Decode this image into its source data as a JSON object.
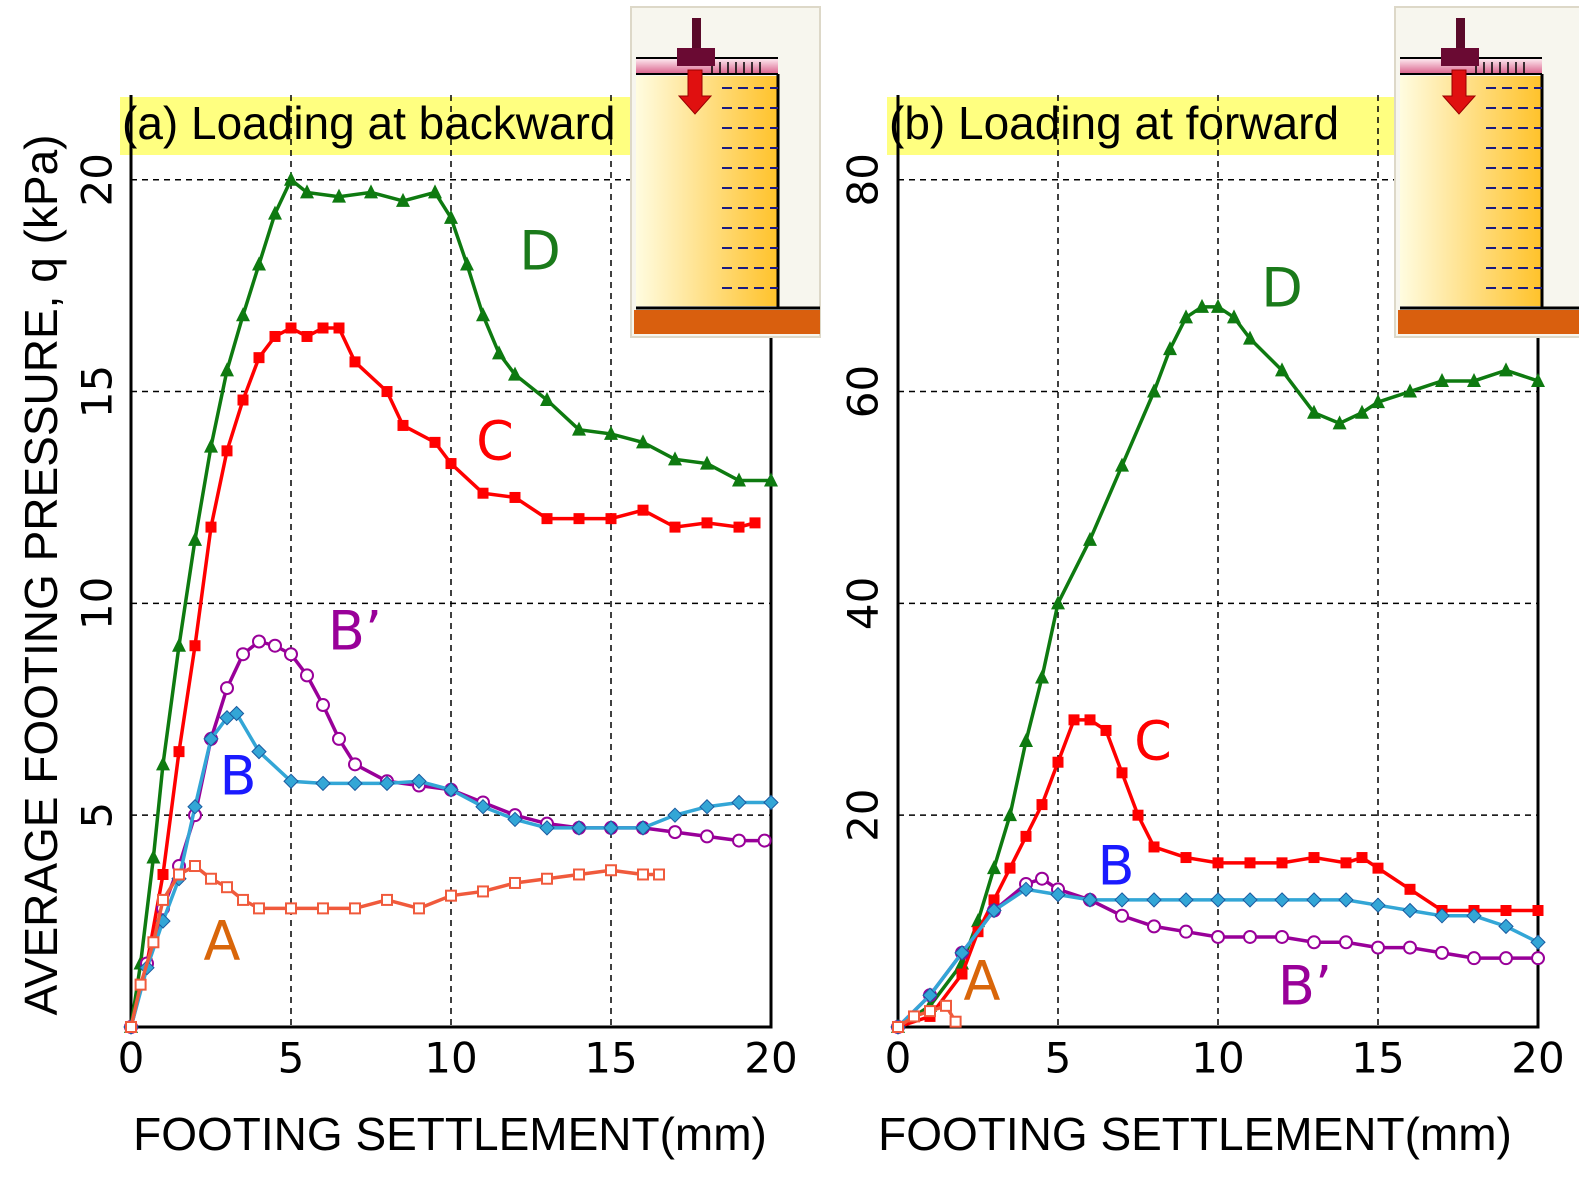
{
  "chart_data": [
    {
      "type": "line",
      "title": "(a) Loading at backward",
      "x_label": "FOOTING SETTLEMENT(mm)",
      "y_label": "AVERAGE FOOTING PRESSURE, q (kPa)",
      "xlim": [
        0,
        20
      ],
      "ylim": [
        0,
        22
      ],
      "xticks": [
        0,
        5,
        10,
        15,
        20
      ],
      "yticks": [
        5,
        10,
        15,
        20
      ],
      "grid": true,
      "series": [
        {
          "name": "D",
          "color": "#0e7a10",
          "label_color": "#1a7a1a",
          "marker": "triangle",
          "x": [
            0,
            0.3,
            0.7,
            1,
            1.5,
            2,
            2.5,
            3,
            3.5,
            4,
            4.5,
            5,
            5.5,
            6.5,
            7.5,
            8.5,
            9.5,
            10,
            10.5,
            11,
            11.5,
            12,
            13,
            14,
            15,
            16,
            17,
            18,
            19,
            20
          ],
          "values": [
            0,
            1.5,
            4,
            6.2,
            9,
            11.5,
            13.7,
            15.5,
            16.8,
            18,
            19.2,
            20,
            19.7,
            19.6,
            19.7,
            19.5,
            19.7,
            19.1,
            18,
            16.8,
            15.9,
            15.4,
            14.8,
            14.1,
            14,
            13.8,
            13.4,
            13.3,
            12.9,
            12.9
          ]
        },
        {
          "name": "C",
          "color": "#ff0000",
          "label_color": "#ff0000",
          "marker": "square",
          "x": [
            0,
            0.5,
            1,
            1.5,
            2,
            2.5,
            3,
            3.5,
            4,
            4.5,
            5,
            5.5,
            6,
            6.5,
            7,
            8,
            8.5,
            9.5,
            10,
            11,
            12,
            13,
            14,
            15,
            16,
            17,
            18,
            19,
            19.5
          ],
          "values": [
            0,
            1.5,
            3.6,
            6.5,
            9,
            11.8,
            13.6,
            14.8,
            15.8,
            16.3,
            16.5,
            16.3,
            16.5,
            16.5,
            15.7,
            15,
            14.2,
            13.8,
            13.3,
            12.6,
            12.5,
            12,
            12,
            12,
            12.2,
            11.8,
            11.9,
            11.8,
            11.9
          ]
        },
        {
          "name": "B’",
          "color": "#990099",
          "label_color": "#990099",
          "marker": "circle",
          "x": [
            0,
            0.5,
            1,
            1.5,
            2,
            2.5,
            3,
            3.5,
            4,
            4.5,
            5,
            5.5,
            6,
            6.5,
            7,
            8,
            9,
            10,
            11,
            12,
            13,
            14,
            15,
            16,
            17,
            18,
            19,
            19.8
          ],
          "values": [
            0,
            1.5,
            2.8,
            3.8,
            5,
            6.8,
            8,
            8.8,
            9.1,
            9,
            8.8,
            8.3,
            7.6,
            6.8,
            6.2,
            5.8,
            5.7,
            5.6,
            5.3,
            5,
            4.8,
            4.7,
            4.7,
            4.7,
            4.6,
            4.5,
            4.4,
            4.4
          ]
        },
        {
          "name": "B",
          "color": "#33a6d6",
          "label_color": "#1a1aff",
          "marker": "diamond",
          "x": [
            0,
            0.5,
            1,
            1.5,
            2,
            2.5,
            3,
            3.3,
            4,
            5,
            6,
            7,
            8,
            9,
            10,
            11,
            12,
            13,
            14,
            15,
            16,
            17,
            18,
            19,
            20
          ],
          "values": [
            0,
            1.4,
            2.5,
            3.5,
            5.2,
            6.8,
            7.3,
            7.4,
            6.5,
            5.8,
            5.75,
            5.75,
            5.75,
            5.8,
            5.6,
            5.2,
            4.9,
            4.7,
            4.7,
            4.7,
            4.7,
            5,
            5.2,
            5.3,
            5.3
          ]
        },
        {
          "name": "A",
          "color": "#f05a3c",
          "label_color": "#d9660a",
          "marker": "open-square",
          "x": [
            0,
            0.3,
            0.7,
            1,
            1.5,
            2,
            2.5,
            3,
            3.5,
            4,
            5,
            6,
            7,
            8,
            9,
            10,
            11,
            12,
            13,
            14,
            15,
            16,
            16.5
          ],
          "values": [
            0,
            1,
            2,
            3,
            3.6,
            3.8,
            3.5,
            3.3,
            3,
            2.8,
            2.8,
            2.8,
            2.8,
            3,
            2.8,
            3.1,
            3.2,
            3.4,
            3.5,
            3.6,
            3.7,
            3.6,
            3.6
          ]
        }
      ]
    },
    {
      "type": "line",
      "title": "(b) Loading at forward",
      "x_label": "FOOTING SETTLEMENT(mm)",
      "xlim": [
        0,
        20
      ],
      "ylim": [
        0,
        88
      ],
      "xticks": [
        0,
        5,
        10,
        15,
        20
      ],
      "yticks": [
        20,
        40,
        60,
        80
      ],
      "grid": true,
      "series": [
        {
          "name": "D",
          "color": "#0e7a10",
          "label_color": "#1a7a1a",
          "marker": "triangle",
          "x": [
            0,
            1,
            2,
            2.5,
            3,
            3.5,
            4,
            4.5,
            5,
            6,
            7,
            8,
            8.5,
            9,
            9.5,
            10,
            10.5,
            11,
            12,
            13,
            13.8,
            14.5,
            15,
            16,
            17,
            18,
            19,
            20
          ],
          "values": [
            0,
            2,
            6,
            10,
            15,
            20,
            27,
            33,
            40,
            46,
            53,
            60,
            64,
            67,
            68,
            68,
            67,
            65,
            62,
            58,
            57,
            58,
            59,
            60,
            61,
            61,
            62,
            61
          ]
        },
        {
          "name": "C",
          "color": "#ff0000",
          "label_color": "#ff0000",
          "marker": "square",
          "x": [
            0,
            1,
            2,
            2.5,
            3,
            3.5,
            4,
            4.5,
            5,
            5.5,
            6,
            6.5,
            7,
            7.5,
            8,
            9,
            10,
            11,
            12,
            13,
            14,
            14.5,
            15,
            16,
            17,
            18,
            19,
            20
          ],
          "values": [
            0,
            1,
            5,
            9,
            12,
            15,
            18,
            21,
            25,
            29,
            29,
            28,
            24,
            20,
            17,
            16,
            15.5,
            15.5,
            15.5,
            16,
            15.5,
            16,
            15,
            13,
            11,
            11,
            11,
            11
          ]
        },
        {
          "name": "B’",
          "color": "#990099",
          "label_color": "#990099",
          "marker": "circle",
          "x": [
            0,
            1,
            2,
            3,
            4,
            4.5,
            5,
            6,
            7,
            8,
            9,
            10,
            11,
            12,
            13,
            14,
            15,
            16,
            17,
            18,
            19,
            20
          ],
          "values": [
            0,
            3,
            7,
            11,
            13.5,
            14,
            13,
            12,
            10.5,
            9.5,
            9,
            8.5,
            8.5,
            8.5,
            8,
            8,
            7.5,
            7.5,
            7,
            6.5,
            6.5,
            6.5
          ]
        },
        {
          "name": "B",
          "color": "#33a6d6",
          "label_color": "#1a1aff",
          "marker": "diamond",
          "x": [
            0,
            1,
            2,
            3,
            4,
            5,
            6,
            7,
            8,
            9,
            10,
            11,
            12,
            13,
            14,
            15,
            16,
            17,
            18,
            19,
            20
          ],
          "values": [
            0,
            3,
            7,
            11,
            13,
            12.5,
            12,
            12,
            12,
            12,
            12,
            12,
            12,
            12,
            12,
            11.5,
            11,
            10.5,
            10.5,
            9.5,
            8
          ]
        },
        {
          "name": "A",
          "color": "#f05a3c",
          "label_color": "#d9660a",
          "marker": "open-square",
          "x": [
            0,
            0.5,
            1,
            1.5,
            1.8
          ],
          "values": [
            0,
            1,
            1.5,
            2,
            0.5
          ]
        }
      ]
    }
  ]
}
